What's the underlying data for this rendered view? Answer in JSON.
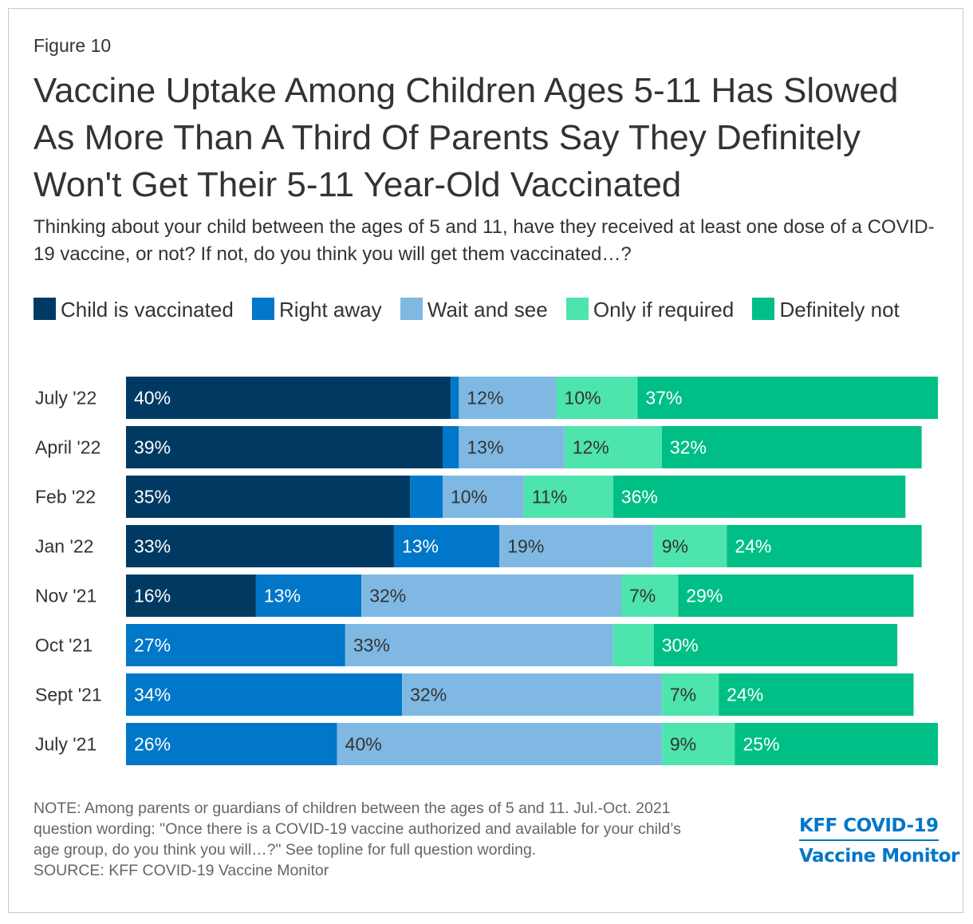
{
  "figure_label": "Figure 10",
  "colors": {
    "child_vaccinated": "#003a63",
    "right_away": "#0077c8",
    "wait_and_see": "#7fb9e3",
    "only_if_required": "#4ee4ae",
    "definitely_not": "#00bf86"
  },
  "chart_data": {
    "type": "bar",
    "orientation": "horizontal-stacked",
    "title": "Vaccine Uptake Among Children Ages 5-11 Has Slowed As More Than A Third Of Parents Say They Definitely Won't Get Their 5-11 Year-Old Vaccinated",
    "subtitle": "Thinking about your child between the ages of 5 and 11, have they received at least one dose of a COVID-19 vaccine, or not? If not, do you think you will get them vaccinated…?",
    "legend_position": "top",
    "xlim": [
      0,
      100
    ],
    "categories": [
      "July '22",
      "April '22",
      "Feb '22",
      "Jan '22",
      "Nov '21",
      "Oct '21",
      "Sept '21",
      "July '21"
    ],
    "series": [
      {
        "name": "Child is vaccinated",
        "values": [
          40,
          39,
          35,
          33,
          16,
          0,
          0,
          0
        ],
        "labels": [
          "40%",
          "39%",
          "35%",
          "33%",
          "16%",
          "",
          "",
          ""
        ]
      },
      {
        "name": "Right away",
        "values": [
          1,
          2,
          4,
          13,
          13,
          27,
          34,
          26
        ],
        "labels": [
          "",
          "",
          "",
          "13%",
          "13%",
          "27%",
          "34%",
          "26%"
        ]
      },
      {
        "name": "Wait and see",
        "values": [
          12,
          13,
          10,
          19,
          32,
          33,
          32,
          40
        ],
        "labels": [
          "12%",
          "13%",
          "10%",
          "19%",
          "32%",
          "33%",
          "32%",
          "40%"
        ]
      },
      {
        "name": "Only if required",
        "values": [
          10,
          12,
          11,
          9,
          7,
          5,
          7,
          9
        ],
        "labels": [
          "10%",
          "12%",
          "11%",
          "9%",
          "7%",
          "",
          "7%",
          "9%"
        ]
      },
      {
        "name": "Definitely not",
        "values": [
          37,
          32,
          36,
          24,
          29,
          30,
          24,
          25
        ],
        "labels": [
          "37%",
          "32%",
          "36%",
          "24%",
          "29%",
          "30%",
          "24%",
          "25%"
        ]
      }
    ]
  },
  "note": {
    "line1": "NOTE: Among parents or guardians of children between the ages of 5 and 11. Jul.-Oct. 2021",
    "line2": "question wording: \"Once there is a COVID-19 vaccine authorized and available for your child’s",
    "line3": "age group, do you think you will…?\" See topline for full question wording.",
    "source": "SOURCE: KFF COVID-19 Vaccine Monitor"
  },
  "brand": {
    "line1": "KFF COVID-19",
    "line2": "Vaccine Monitor"
  }
}
